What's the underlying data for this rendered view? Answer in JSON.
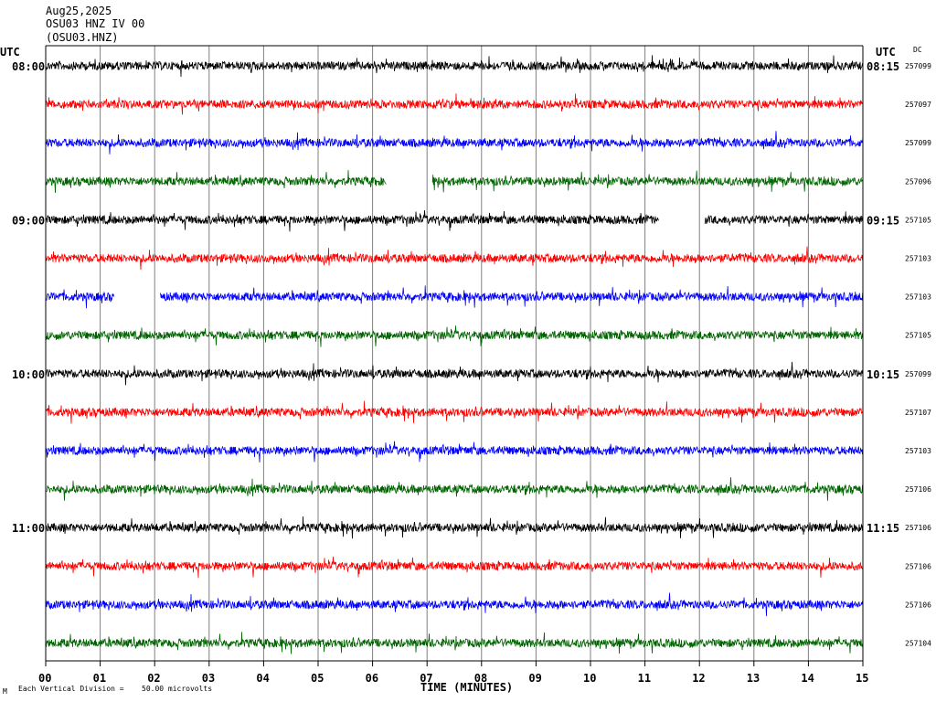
{
  "header": {
    "date": "Aug25,2025",
    "station": "OSU03 HNZ IV 00",
    "station_code": "(OSU03.HNZ)"
  },
  "colors": {
    "trace_colors": [
      "#000000",
      "#ff0000",
      "#0000ff",
      "#006400"
    ],
    "grid": "#808080",
    "axis": "#000000"
  },
  "chart_data": {
    "type": "helicorder",
    "left_axis_title": "UTC",
    "right_axis_title": "UTC",
    "dc_title": "DC",
    "xlabel": "TIME (MINUTES)",
    "x_ticks": [
      "00",
      "01",
      "02",
      "03",
      "04",
      "05",
      "06",
      "07",
      "08",
      "09",
      "10",
      "11",
      "12",
      "13",
      "14",
      "15"
    ],
    "xlim": [
      0,
      15
    ],
    "footer_note": "Each Vertical Division =",
    "scale_value": "50.00 microvolts",
    "corner_mark": "M",
    "rows": [
      {
        "left": "08:00",
        "right": "08:15",
        "dc": "257099",
        "gaps": []
      },
      {
        "left": "",
        "right": "",
        "dc": "257097",
        "gaps": []
      },
      {
        "left": "",
        "right": "",
        "dc": "257099",
        "gaps": []
      },
      {
        "left": "",
        "right": "",
        "dc": "257096",
        "gaps": [
          [
            6.25,
            7.1
          ]
        ]
      },
      {
        "left": "09:00",
        "right": "09:15",
        "dc": "257105",
        "gaps": [
          [
            11.25,
            12.1
          ]
        ]
      },
      {
        "left": "",
        "right": "",
        "dc": "257103",
        "gaps": []
      },
      {
        "left": "",
        "right": "",
        "dc": "257103",
        "gaps": [
          [
            1.25,
            2.1
          ]
        ]
      },
      {
        "left": "",
        "right": "",
        "dc": "257105",
        "gaps": []
      },
      {
        "left": "10:00",
        "right": "10:15",
        "dc": "257099",
        "gaps": []
      },
      {
        "left": "",
        "right": "",
        "dc": "257107",
        "gaps": []
      },
      {
        "left": "",
        "right": "",
        "dc": "257103",
        "gaps": []
      },
      {
        "left": "",
        "right": "",
        "dc": "257106",
        "gaps": []
      },
      {
        "left": "11:00",
        "right": "11:15",
        "dc": "257106",
        "gaps": []
      },
      {
        "left": "",
        "right": "",
        "dc": "257106",
        "gaps": []
      },
      {
        "left": "",
        "right": "",
        "dc": "257106",
        "gaps": []
      },
      {
        "left": "",
        "right": "",
        "dc": "257104",
        "gaps": []
      }
    ]
  }
}
